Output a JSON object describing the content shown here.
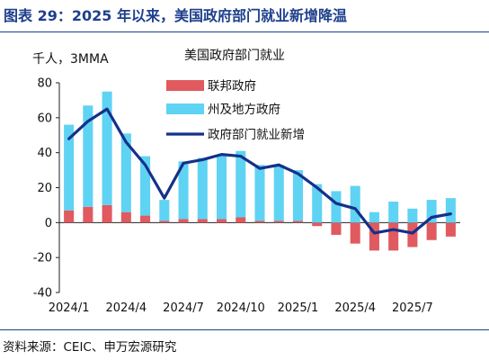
{
  "figure_title": "图表 29：2025 年以来，美国政府部门就业新增降温",
  "source_note": "资料来源：CEIC、申万宏源研究",
  "colors": {
    "accent": "#1e3f8c",
    "federal_bar": "#e05a5f",
    "state_local_bar": "#5fd3f3",
    "total_line": "#14308a"
  },
  "chart_data": {
    "type": "bar",
    "title": "美国政府部门就业",
    "unit_label": "千人，3MMA",
    "ylim": [
      -40,
      80
    ],
    "yticks": [
      -40,
      -20,
      0,
      20,
      40,
      60,
      80
    ],
    "x": [
      "2024/1",
      "2024/2",
      "2024/3",
      "2024/4",
      "2024/5",
      "2024/6",
      "2024/7",
      "2024/8",
      "2024/9",
      "2024/10",
      "2024/11",
      "2024/12",
      "2025/1",
      "2025/2",
      "2025/3",
      "2025/4",
      "2025/5",
      "2025/6",
      "2025/7",
      "2025/8",
      "2025/9"
    ],
    "xtick_labels": [
      "2024/1",
      "2024/4",
      "2024/7",
      "2024/10",
      "2025/1",
      "2025/4",
      "2025/7"
    ],
    "series": [
      {
        "name": "联邦政府",
        "kind": "bar",
        "values": [
          7,
          9,
          10,
          6,
          4,
          1,
          2,
          2,
          2,
          3,
          1,
          1,
          1,
          -2,
          -7,
          -12,
          -16,
          -16,
          -14,
          -10,
          -8
        ]
      },
      {
        "name": "州及地方政府",
        "kind": "bar",
        "values": [
          49,
          58,
          65,
          45,
          34,
          12,
          33,
          35,
          37,
          38,
          32,
          32,
          29,
          22,
          18,
          21,
          6,
          12,
          8,
          13,
          14
        ]
      },
      {
        "name": "政府部门就业新增",
        "kind": "line",
        "values": [
          48,
          58,
          65,
          46,
          33,
          14,
          34,
          36,
          39,
          38,
          31,
          33,
          28,
          20,
          11,
          8,
          -6,
          -4,
          -6,
          3,
          5
        ]
      }
    ],
    "legend": "top-right"
  }
}
